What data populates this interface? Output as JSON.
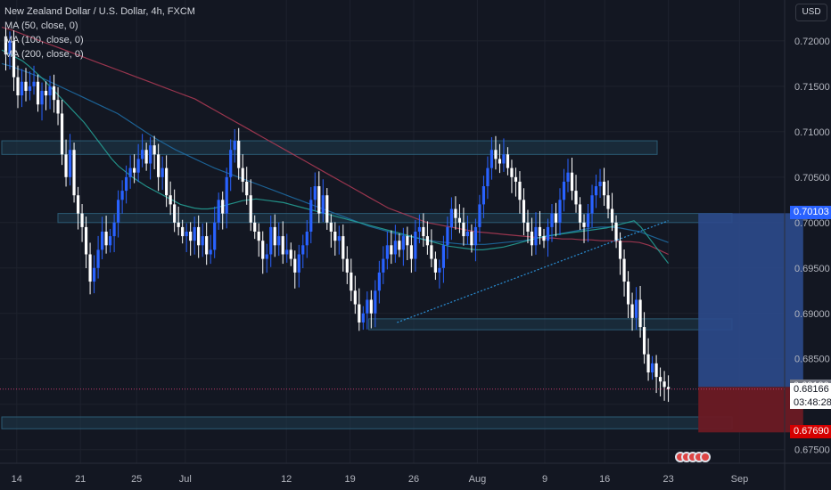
{
  "header": {
    "symbol_title": "New Zealand Dollar / U.S. Dollar, 4h, FXCM",
    "indicators": [
      "MA (50, close, 0)",
      "MA (100, close, 0)",
      "MA (200, close, 0)"
    ],
    "currency": "USD"
  },
  "price_tags": {
    "target": "0.70103",
    "entry": "0.68190",
    "last": "0.68166",
    "countdown": "03:48:28",
    "stop": "0.67690"
  },
  "colors": {
    "background": "#131722",
    "up": "#2962ff",
    "down": "#ffffff",
    "ma50": "#26a69a",
    "ma100": "#1e6fa8",
    "ma200": "#b23b56",
    "target_zone": "#2c4a8c",
    "stop_zone": "#6b1a24",
    "zone_box": "#1f3a4c"
  },
  "chart_data": {
    "type": "candlestick",
    "title": "New Zealand Dollar / U.S. Dollar, 4h, FXCM",
    "y_ticks": [
      "0.72000",
      "0.71500",
      "0.71000",
      "0.70500",
      "0.70000",
      "0.69500",
      "0.69000",
      "0.68500",
      "0.68000",
      "0.67500"
    ],
    "ylim": [
      0.6735,
      0.7245
    ],
    "x_ticks": [
      "14",
      "21",
      "25",
      "Jul",
      "12",
      "19",
      "26",
      "Aug",
      "9",
      "16",
      "23",
      "Sep"
    ],
    "x_range_bars": [
      0,
      210
    ],
    "x_tick_positions_bars": [
      4,
      21,
      36,
      49,
      76,
      93,
      110,
      127,
      145,
      161,
      178,
      197
    ],
    "last_price": 0.68166,
    "close": [
      0.7205,
      0.7185,
      0.72,
      0.716,
      0.714,
      0.7155,
      0.7145,
      0.715,
      0.7155,
      0.713,
      0.7145,
      0.714,
      0.715,
      0.7135,
      0.712,
      0.7075,
      0.705,
      0.708,
      0.703,
      0.701,
      0.6995,
      0.6965,
      0.6935,
      0.695,
      0.697,
      0.699,
      0.6975,
      0.6985,
      0.7,
      0.7025,
      0.7035,
      0.705,
      0.706,
      0.7055,
      0.707,
      0.708,
      0.7065,
      0.7085,
      0.7075,
      0.705,
      0.706,
      0.703,
      0.702,
      0.7,
      0.6995,
      0.6985,
      0.699,
      0.698,
      0.6995,
      0.6975,
      0.6985,
      0.6965,
      0.697,
      0.7,
      0.7025,
      0.701,
      0.705,
      0.708,
      0.709,
      0.706,
      0.7045,
      0.703,
      0.7,
      0.699,
      0.698,
      0.696,
      0.6965,
      0.6995,
      0.6975,
      0.6985,
      0.6965,
      0.697,
      0.696,
      0.6945,
      0.6965,
      0.6975,
      0.699,
      0.7025,
      0.704,
      0.701,
      0.703,
      0.7,
      0.699,
      0.698,
      0.6985,
      0.696,
      0.6945,
      0.6925,
      0.691,
      0.689,
      0.69,
      0.6915,
      0.69,
      0.6925,
      0.6945,
      0.696,
      0.6975,
      0.6965,
      0.698,
      0.697,
      0.6985,
      0.6975,
      0.696,
      0.699,
      0.6995,
      0.6985,
      0.6975,
      0.696,
      0.6945,
      0.695,
      0.6975,
      0.6995,
      0.7015,
      0.7005,
      0.7,
      0.6985,
      0.699,
      0.6975,
      0.6995,
      0.702,
      0.704,
      0.706,
      0.708,
      0.707,
      0.7065,
      0.7075,
      0.706,
      0.705,
      0.7045,
      0.7025,
      0.7,
      0.699,
      0.6975,
      0.6995,
      0.6985,
      0.698,
      0.6995,
      0.701,
      0.7,
      0.7025,
      0.7045,
      0.7055,
      0.7035,
      0.702,
      0.7,
      0.6995,
      0.701,
      0.703,
      0.704,
      0.7045,
      0.703,
      0.7015,
      0.7,
      0.698,
      0.696,
      0.6935,
      0.691,
      0.6895,
      0.6915,
      0.6885,
      0.6855,
      0.6835,
      0.6845,
      0.683,
      0.6825,
      0.6819,
      0.68166
    ],
    "ma50": [
      0.719,
      0.7186,
      0.7182,
      0.7178,
      0.7172,
      0.7165,
      0.7158,
      0.715,
      0.7142,
      0.7134,
      0.7126,
      0.7118,
      0.711,
      0.71,
      0.709,
      0.708,
      0.707,
      0.7062,
      0.7056,
      0.705,
      0.7045,
      0.704,
      0.7036,
      0.7032,
      0.7028,
      0.7024,
      0.702,
      0.7018,
      0.7016,
      0.7015,
      0.7015,
      0.7016,
      0.7018,
      0.702,
      0.7022,
      0.7024,
      0.7025,
      0.7026,
      0.7025,
      0.7024,
      0.7023,
      0.7022,
      0.702,
      0.7018,
      0.7016,
      0.7014,
      0.7012,
      0.701,
      0.7008,
      0.7006,
      0.7004,
      0.7002,
      0.7,
      0.6998,
      0.6996,
      0.6994,
      0.6992,
      0.699,
      0.6988,
      0.6986,
      0.6984,
      0.6982,
      0.698,
      0.6978,
      0.6976,
      0.6974,
      0.6973,
      0.6972,
      0.6971,
      0.697,
      0.697,
      0.6971,
      0.6972,
      0.6973,
      0.6975,
      0.6977,
      0.6979,
      0.6981,
      0.6983,
      0.6985,
      0.6986,
      0.6987,
      0.6988,
      0.6989,
      0.699,
      0.6991,
      0.6992,
      0.6993,
      0.6994,
      0.6996,
      0.6998,
      0.7,
      0.7002,
      0.6995,
      0.6985,
      0.6975,
      0.6965,
      0.6955
    ],
    "ma100": [
      0.7175,
      0.7172,
      0.7168,
      0.7164,
      0.716,
      0.7155,
      0.715,
      0.7145,
      0.714,
      0.7135,
      0.713,
      0.7125,
      0.712,
      0.7113,
      0.7106,
      0.7099,
      0.7092,
      0.7086,
      0.708,
      0.7075,
      0.707,
      0.7065,
      0.706,
      0.7056,
      0.7052,
      0.7048,
      0.7044,
      0.704,
      0.7036,
      0.7032,
      0.7028,
      0.7024,
      0.702,
      0.7016,
      0.7012,
      0.7008,
      0.7004,
      0.7,
      0.6996,
      0.6993,
      0.699,
      0.6987,
      0.6985,
      0.6983,
      0.6981,
      0.6979,
      0.6978,
      0.6977,
      0.6976,
      0.6976,
      0.6976,
      0.6977,
      0.6978,
      0.6979,
      0.698,
      0.6982,
      0.6984,
      0.6986,
      0.6988,
      0.699,
      0.6992,
      0.6994,
      0.6995,
      0.6995,
      0.6994,
      0.6992,
      0.699,
      0.6986,
      0.6982,
      0.6978
    ],
    "ma200": [
      0.7215,
      0.7212,
      0.7208,
      0.7204,
      0.72,
      0.7196,
      0.7192,
      0.7188,
      0.7184,
      0.718,
      0.7176,
      0.7172,
      0.7168,
      0.7164,
      0.716,
      0.7156,
      0.7152,
      0.7148,
      0.7144,
      0.714,
      0.7136,
      0.713,
      0.7124,
      0.7118,
      0.7112,
      0.7106,
      0.71,
      0.7094,
      0.7088,
      0.7082,
      0.7076,
      0.707,
      0.7064,
      0.7058,
      0.7052,
      0.7046,
      0.704,
      0.7034,
      0.7028,
      0.7022,
      0.7016,
      0.7012,
      0.7008,
      0.7004,
      0.7,
      0.6998,
      0.6996,
      0.6994,
      0.6992,
      0.699,
      0.6989,
      0.6988,
      0.6987,
      0.6986,
      0.6985,
      0.6984,
      0.6983,
      0.6983,
      0.6982,
      0.6982,
      0.6981,
      0.6981,
      0.698,
      0.698,
      0.6979,
      0.6979,
      0.6978,
      0.6975,
      0.697,
      0.6965
    ],
    "zones": [
      {
        "from_bar": 0,
        "to_bar": 175,
        "low": 0.7075,
        "high": 0.709
      },
      {
        "from_bar": 15,
        "to_bar": 195,
        "low": 0.7,
        "high": 0.701
      },
      {
        "from_bar": 98,
        "to_bar": 195,
        "low": 0.6882,
        "high": 0.6894
      },
      {
        "from_bar": 0,
        "to_bar": 195,
        "low": 0.6773,
        "high": 0.6786
      }
    ],
    "trendline": {
      "from": [
        102,
        0.689
      ],
      "to": [
        172,
        0.7002
      ]
    },
    "position": {
      "from_bar": 186,
      "to_bar": 214,
      "target": 0.70103,
      "entry": 0.6819,
      "stop": 0.6769
    }
  }
}
